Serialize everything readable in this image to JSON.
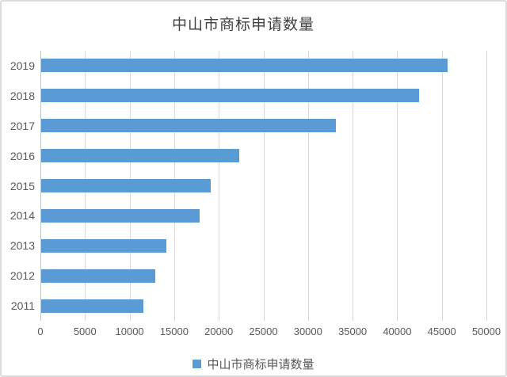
{
  "chart_data": {
    "type": "bar",
    "orientation": "horizontal",
    "title": "中山市商标申请数量",
    "legend_label": "中山市商标申请数量",
    "legend_position": "bottom",
    "categories": [
      "2019",
      "2018",
      "2017",
      "2016",
      "2015",
      "2014",
      "2013",
      "2012",
      "2011"
    ],
    "values": [
      45600,
      42400,
      33000,
      22200,
      19000,
      17800,
      14000,
      12800,
      11500
    ],
    "xlabel": "",
    "ylabel": "",
    "xlim": [
      0,
      50000
    ],
    "x_ticks": [
      0,
      5000,
      10000,
      15000,
      20000,
      25000,
      30000,
      35000,
      40000,
      45000,
      50000
    ],
    "grid": true,
    "bar_color": "#5B9BD5",
    "colors": {
      "title_text": "#404040",
      "axis_label_text": "#595959",
      "gridline": "#D9D9D9",
      "frame_border": "#DCDCDC"
    }
  }
}
